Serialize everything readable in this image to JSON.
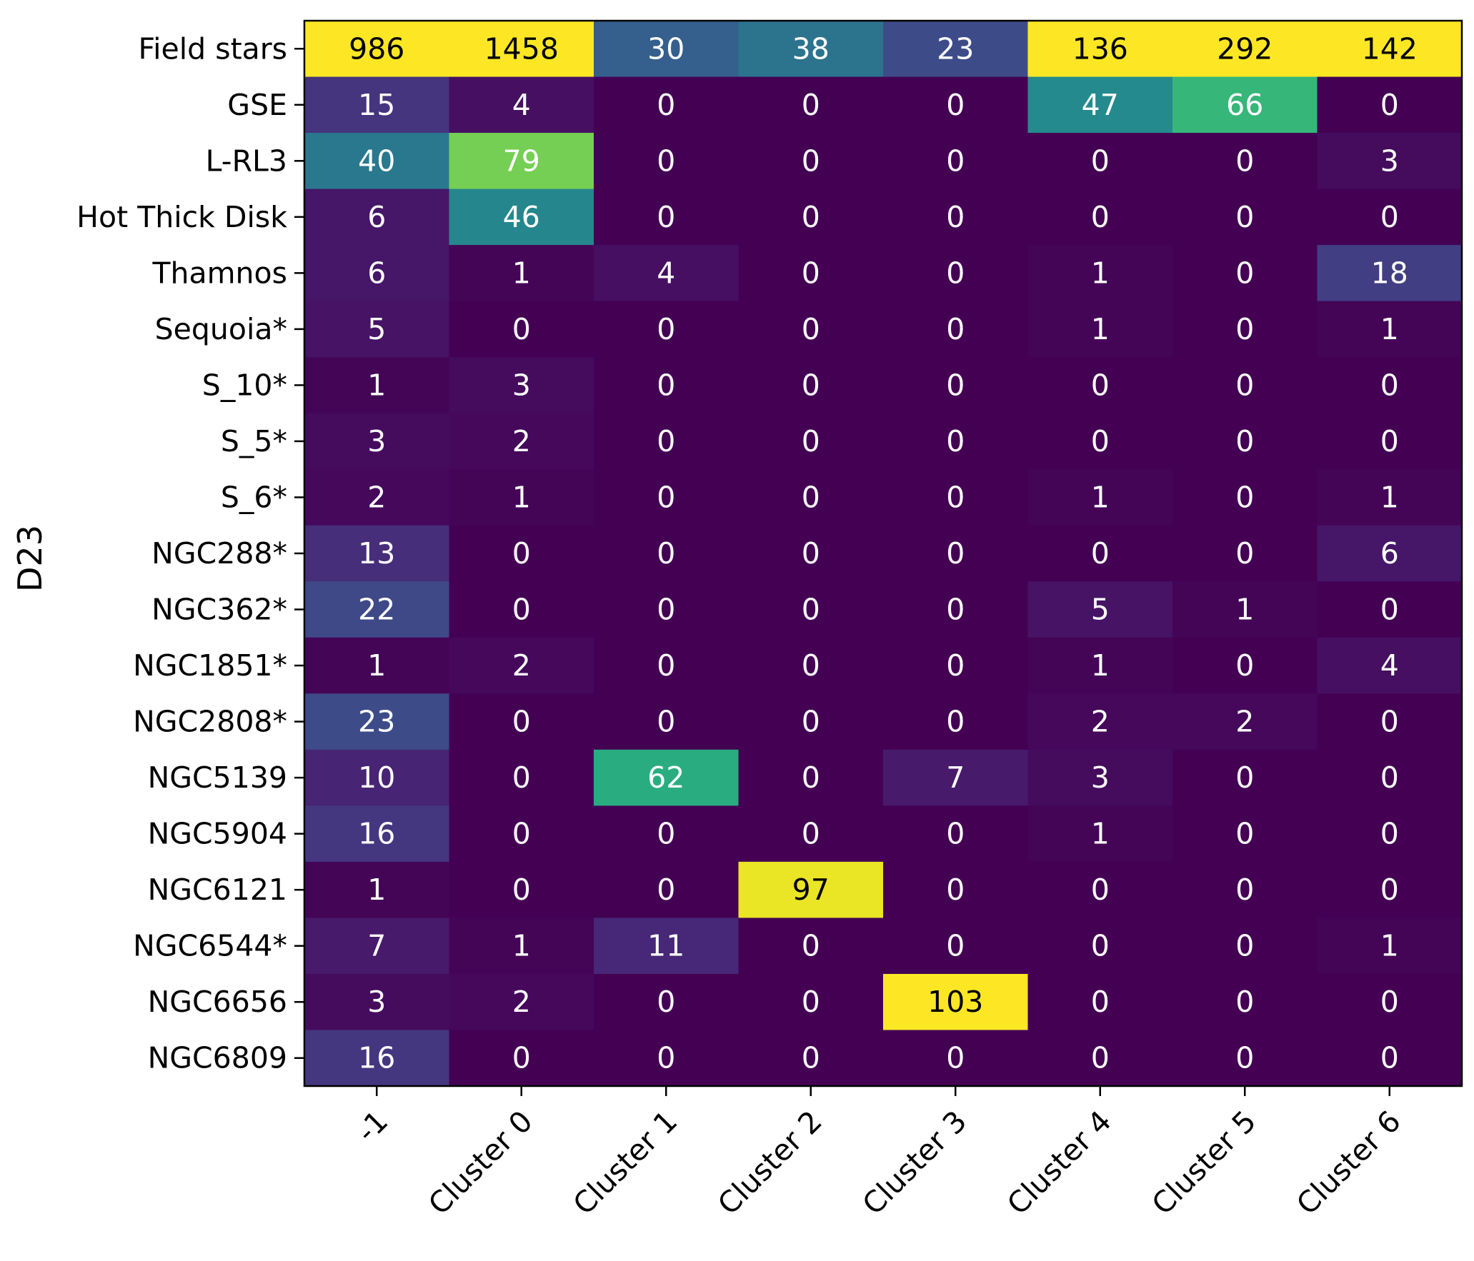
{
  "chart_data": {
    "type": "heatmap",
    "title": "",
    "xlabel": "",
    "ylabel": "D23",
    "colormap": "viridis",
    "columns": [
      "-1",
      "Cluster 0",
      "Cluster 1",
      "Cluster 2",
      "Cluster 3",
      "Cluster 4",
      "Cluster 5",
      "Cluster 6"
    ],
    "rows": [
      "Field stars",
      "GSE",
      "L-RL3",
      "Hot Thick Disk",
      "Thamnos",
      "Sequoia*",
      "S_10*",
      "S_5*",
      "S_6*",
      "NGC288*",
      "NGC362*",
      "NGC1851*",
      "NGC2808*",
      "NGC5139",
      "NGC5904",
      "NGC6121",
      "NGC6544*",
      "NGC6656",
      "NGC6809"
    ],
    "values": [
      [
        986,
        1458,
        30,
        38,
        23,
        136,
        292,
        142
      ],
      [
        15,
        4,
        0,
        0,
        0,
        47,
        66,
        0
      ],
      [
        40,
        79,
        0,
        0,
        0,
        0,
        0,
        3
      ],
      [
        6,
        46,
        0,
        0,
        0,
        0,
        0,
        0
      ],
      [
        6,
        1,
        4,
        0,
        0,
        1,
        0,
        18
      ],
      [
        5,
        0,
        0,
        0,
        0,
        1,
        0,
        1
      ],
      [
        1,
        3,
        0,
        0,
        0,
        0,
        0,
        0
      ],
      [
        3,
        2,
        0,
        0,
        0,
        0,
        0,
        0
      ],
      [
        2,
        1,
        0,
        0,
        0,
        1,
        0,
        1
      ],
      [
        13,
        0,
        0,
        0,
        0,
        0,
        0,
        6
      ],
      [
        22,
        0,
        0,
        0,
        0,
        5,
        1,
        0
      ],
      [
        1,
        2,
        0,
        0,
        0,
        1,
        0,
        4
      ],
      [
        23,
        0,
        0,
        0,
        0,
        2,
        2,
        0
      ],
      [
        10,
        0,
        62,
        0,
        7,
        3,
        0,
        0
      ],
      [
        16,
        0,
        0,
        0,
        0,
        1,
        0,
        0
      ],
      [
        1,
        0,
        0,
        97,
        0,
        0,
        0,
        0
      ],
      [
        7,
        1,
        11,
        0,
        0,
        0,
        0,
        1
      ],
      [
        3,
        2,
        0,
        0,
        103,
        0,
        0,
        0
      ],
      [
        16,
        0,
        0,
        0,
        0,
        0,
        0,
        0
      ]
    ],
    "color_scale": {
      "vmin": 0,
      "vmax": 100,
      "clip": true
    }
  }
}
